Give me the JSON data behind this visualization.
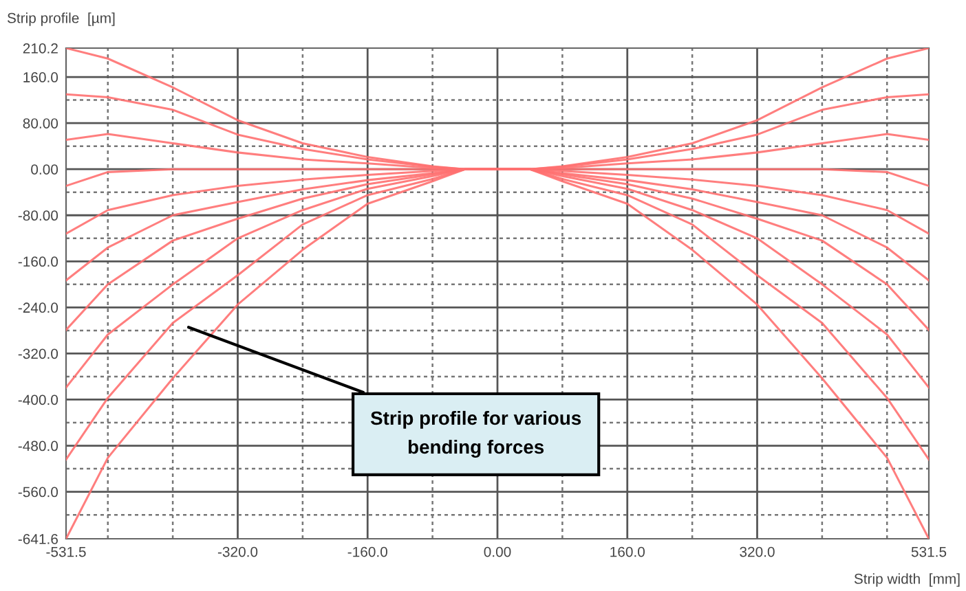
{
  "chart_data": {
    "type": "line",
    "xlabel": "Strip width  [mm]",
    "ylabel": "Strip profile  [µm]",
    "x": [
      -531.5,
      -480,
      -400,
      -320,
      -240,
      -160,
      -80,
      -40,
      0,
      40,
      80,
      160,
      240,
      320,
      400,
      480,
      531.5
    ],
    "series": [
      {
        "color": "#ff7070",
        "values": [
          210.2,
          192,
          142,
          85,
          45,
          21,
          5,
          0,
          0,
          0,
          5,
          21,
          45,
          85,
          142,
          192,
          210.2
        ]
      },
      {
        "color": "#ff7070",
        "values": [
          130,
          125,
          103,
          60,
          35,
          17,
          4,
          0,
          0,
          0,
          4,
          17,
          35,
          60,
          103,
          125,
          130
        ]
      },
      {
        "color": "#ff7070",
        "values": [
          51,
          61,
          45,
          29,
          17,
          10,
          2,
          0,
          0,
          0,
          2,
          10,
          17,
          29,
          45,
          61,
          51
        ]
      },
      {
        "color": "#ff7070",
        "values": [
          -29,
          -5,
          0,
          0,
          0,
          0,
          0,
          0,
          0,
          0,
          0,
          0,
          0,
          0,
          0,
          -5,
          -29
        ]
      },
      {
        "color": "#ff7070",
        "values": [
          -112,
          -71,
          -45,
          -29,
          -18,
          -10,
          -3,
          0,
          0,
          0,
          -3,
          -10,
          -18,
          -29,
          -45,
          -71,
          -112
        ]
      },
      {
        "color": "#ff7070",
        "values": [
          -193,
          -136,
          -80,
          -57,
          -35,
          -19,
          -7,
          0,
          0,
          0,
          -7,
          -19,
          -35,
          -57,
          -80,
          -136,
          -193
        ]
      },
      {
        "color": "#ff7070",
        "values": [
          -279,
          -200,
          -124,
          -86,
          -51,
          -26,
          -9,
          0,
          0,
          0,
          -9,
          -26,
          -51,
          -86,
          -124,
          -200,
          -279
        ]
      },
      {
        "color": "#ff7070",
        "values": [
          -379,
          -287,
          -200,
          -120,
          -71,
          -34,
          -12,
          0,
          0,
          0,
          -12,
          -34,
          -71,
          -120,
          -200,
          -287,
          -379
        ]
      },
      {
        "color": "#ff7070",
        "values": [
          -504,
          -397,
          -267,
          -184,
          -96,
          -45,
          -17,
          0,
          0,
          0,
          -17,
          -45,
          -96,
          -184,
          -267,
          -397,
          -504
        ]
      },
      {
        "color": "#ff7070",
        "values": [
          -641.6,
          -501,
          -363,
          -235,
          -140,
          -60,
          -21,
          0,
          0,
          0,
          -21,
          -60,
          -140,
          -235,
          -363,
          -501,
          -641.6
        ]
      }
    ],
    "xlim": [
      -531.5,
      531.5
    ],
    "ylim": [
      -641.6,
      210.2
    ],
    "xticks": [
      {
        "value": -531.5,
        "label": "-531.5"
      },
      {
        "value": -480,
        "label": null
      },
      {
        "value": -400,
        "label": null
      },
      {
        "value": -320,
        "label": "-320.0"
      },
      {
        "value": -240,
        "label": null
      },
      {
        "value": -160,
        "label": "-160.0"
      },
      {
        "value": -80,
        "label": null
      },
      {
        "value": 0,
        "label": "0.00"
      },
      {
        "value": 80,
        "label": null
      },
      {
        "value": 160,
        "label": "160.0"
      },
      {
        "value": 240,
        "label": null
      },
      {
        "value": 320,
        "label": "320.0"
      },
      {
        "value": 400,
        "label": null
      },
      {
        "value": 480,
        "label": null
      },
      {
        "value": 531.5,
        "label": "531.5"
      }
    ],
    "yticks": [
      {
        "value": 210.2,
        "label": "210.2"
      },
      {
        "value": 160,
        "label": "160.0"
      },
      {
        "value": 120,
        "label": null
      },
      {
        "value": 80,
        "label": "80.00"
      },
      {
        "value": 40,
        "label": null
      },
      {
        "value": 0,
        "label": "0.00"
      },
      {
        "value": -40,
        "label": null
      },
      {
        "value": -80,
        "label": "-80.00"
      },
      {
        "value": -120,
        "label": null
      },
      {
        "value": -160,
        "label": "-160.0"
      },
      {
        "value": -200,
        "label": null
      },
      {
        "value": -240,
        "label": "-240.0"
      },
      {
        "value": -280,
        "label": null
      },
      {
        "value": -320,
        "label": "-320.0"
      },
      {
        "value": -360,
        "label": null
      },
      {
        "value": -400,
        "label": "-400.0"
      },
      {
        "value": -440,
        "label": null
      },
      {
        "value": -480,
        "label": "-480.0"
      },
      {
        "value": -520,
        "label": null
      },
      {
        "value": -560,
        "label": "-560.0"
      },
      {
        "value": -600,
        "label": null
      },
      {
        "value": -641.6,
        "label": "-641.6"
      }
    ],
    "grid": true,
    "marker": "none",
    "line_style": "solid",
    "annotations": [
      "Strip profile for various\nbending forces"
    ]
  }
}
